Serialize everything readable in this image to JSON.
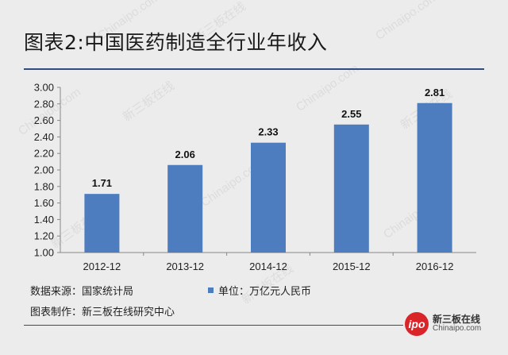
{
  "title": "图表2:中国医药制造全行业年收入",
  "watermark": {
    "text": "Chinaipo.com",
    "text_cn": "新三板在线"
  },
  "footer": {
    "source": "数据来源：国家统计局",
    "maker": "图表制作：新三板在线研究中心"
  },
  "legend": {
    "label": "单位：万亿元人民币"
  },
  "logo": {
    "badge": "ipo",
    "cn": "新三板在线",
    "en": "Chinaipo.com"
  },
  "colors": {
    "bar": "#4d7cbf",
    "rule": "#2f4e80",
    "background": "#ececec"
  },
  "chart_data": {
    "type": "bar",
    "categories": [
      "2012-12",
      "2013-12",
      "2014-12",
      "2015-12",
      "2016-12"
    ],
    "values": [
      1.71,
      2.06,
      2.33,
      2.55,
      2.81
    ],
    "value_labels": [
      "1.71",
      "2.06",
      "2.33",
      "2.55",
      "2.81"
    ],
    "ylim": [
      1.0,
      3.0
    ],
    "yticks": [
      "1.00",
      "1.20",
      "1.40",
      "1.60",
      "1.80",
      "2.00",
      "2.20",
      "2.40",
      "2.60",
      "2.80",
      "3.00"
    ],
    "xlabel": "",
    "ylabel": "",
    "grid": false,
    "legend_position": "bottom-center"
  }
}
